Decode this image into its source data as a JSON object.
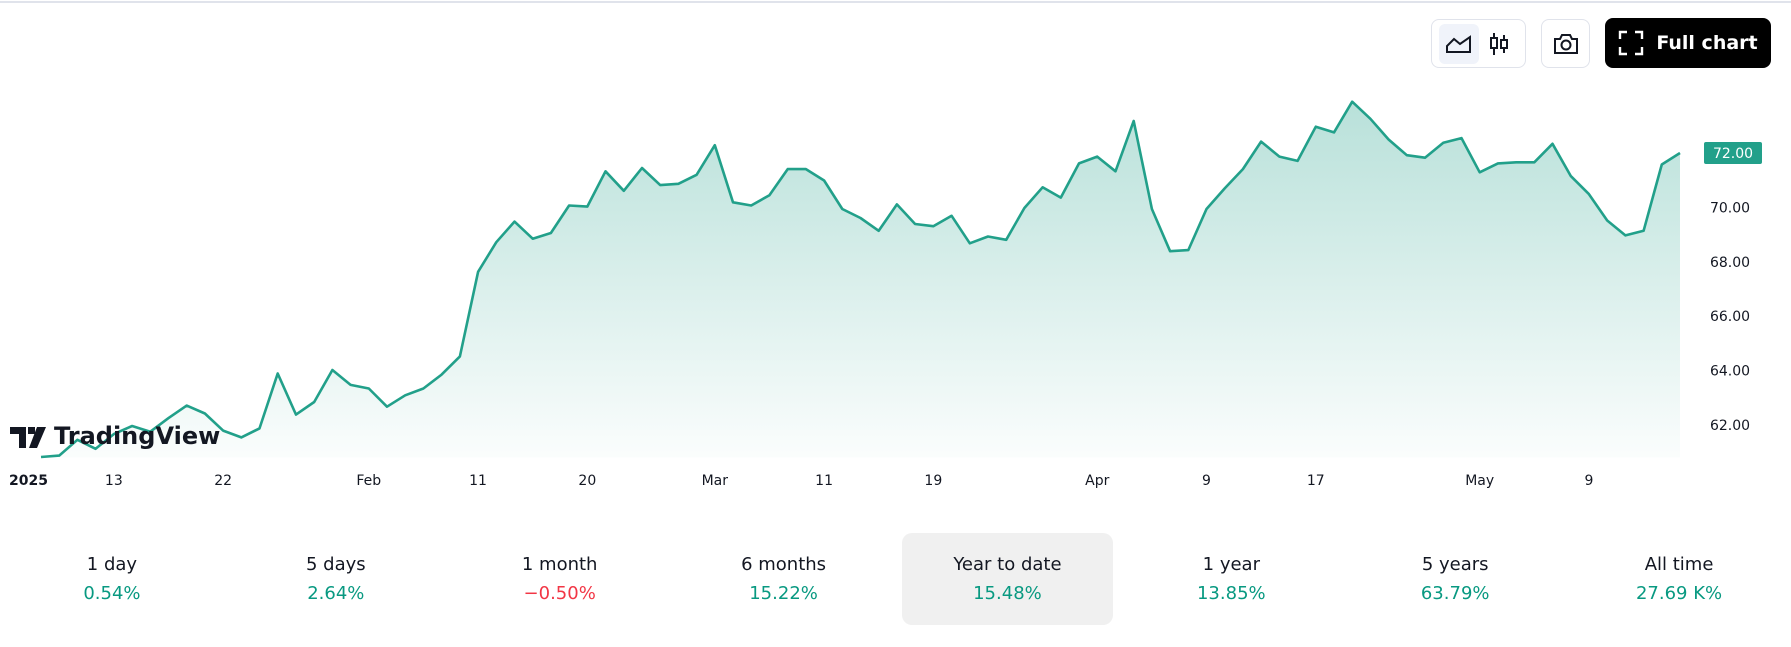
{
  "chart_data": {
    "type": "area",
    "values": [
      60.82,
      60.87,
      61.45,
      61.12,
      61.66,
      61.96,
      61.75,
      62.25,
      62.71,
      62.42,
      61.79,
      61.54,
      61.87,
      63.89,
      62.38,
      62.84,
      64.02,
      63.47,
      63.34,
      62.67,
      63.09,
      63.34,
      63.85,
      64.52,
      67.63,
      68.72,
      69.48,
      68.85,
      69.06,
      70.07,
      70.03,
      71.33,
      70.61,
      71.45,
      70.82,
      70.87,
      71.2,
      72.29,
      70.19,
      70.07,
      70.45,
      71.41,
      71.41,
      70.99,
      69.94,
      69.61,
      69.14,
      70.11,
      69.39,
      69.31,
      69.69,
      68.68,
      68.93,
      68.81,
      69.98,
      70.74,
      70.36,
      71.62,
      71.87,
      71.33,
      73.18,
      69.94,
      68.39,
      68.43,
      69.94,
      70.7,
      71.41,
      72.42,
      71.87,
      71.71,
      72.97,
      72.76,
      73.89,
      73.26,
      72.5,
      71.92,
      71.83,
      72.38,
      72.55,
      71.29,
      71.62,
      71.66,
      71.66,
      72.34,
      71.16,
      70.49,
      69.52,
      68.97,
      69.14,
      71.58,
      72.0
    ],
    "color": "#22a08a",
    "ylim": [
      60.8,
      75
    ],
    "yticks": [
      {
        "value": 62,
        "label": "62.00"
      },
      {
        "value": 64,
        "label": "64.00"
      },
      {
        "value": 66,
        "label": "66.00"
      },
      {
        "value": 68,
        "label": "68.00"
      },
      {
        "value": 70,
        "label": "70.00"
      },
      {
        "value": 72,
        "label": "72.00"
      }
    ],
    "xticks": [
      {
        "value": 0,
        "label": "2025"
      },
      {
        "value": 4,
        "label": "13"
      },
      {
        "value": 10,
        "label": "22"
      },
      {
        "value": 18,
        "label": "Feb"
      },
      {
        "value": 24,
        "label": "11"
      },
      {
        "value": 30,
        "label": "20"
      },
      {
        "value": 37,
        "label": "Mar"
      },
      {
        "value": 43,
        "label": "11"
      },
      {
        "value": 49,
        "label": "19"
      },
      {
        "value": 58,
        "label": "Apr"
      },
      {
        "value": 64,
        "label": "9"
      },
      {
        "value": 70,
        "label": "17"
      },
      {
        "value": 79,
        "label": "May"
      },
      {
        "value": 85,
        "label": "9"
      }
    ],
    "last_price_label": "72.00"
  },
  "logo": "TradingView",
  "toolbar": {
    "full_chart": "Full chart"
  },
  "periods": [
    {
      "label": "1 day",
      "change": "0.54%",
      "color": "#089981"
    },
    {
      "label": "5 days",
      "change": "2.64%",
      "color": "#089981"
    },
    {
      "label": "1 month",
      "change": "−0.50%",
      "color": "#f23645"
    },
    {
      "label": "6 months",
      "change": "15.22%",
      "color": "#089981"
    },
    {
      "label": "Year to date",
      "change": "15.48%",
      "color": "#089981"
    },
    {
      "label": "1 year",
      "change": "13.85%",
      "color": "#089981"
    },
    {
      "label": "5 years",
      "change": "63.79%",
      "color": "#089981"
    },
    {
      "label": "All time",
      "change": "27.69 K%",
      "color": "#089981"
    }
  ],
  "selected_period": 4
}
